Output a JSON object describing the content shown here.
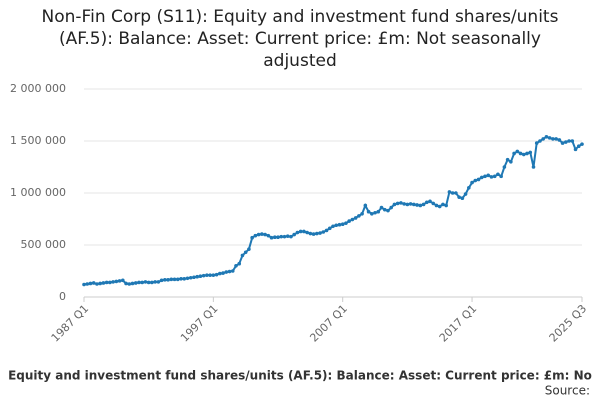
{
  "chart_data": {
    "type": "line",
    "title": "Non-Fin Corp (S11): Equity and investment fund shares/units (AF.5): Balance: Asset: Current price: £m: Not seasonally adjusted",
    "source": "Source:",
    "categories": [
      "1987 Q1",
      null,
      null,
      null,
      null,
      null,
      null,
      null,
      null,
      null,
      null,
      null,
      null,
      null,
      null,
      null,
      null,
      null,
      null,
      null,
      null,
      null,
      null,
      null,
      null,
      null,
      null,
      null,
      null,
      null,
      null,
      null,
      null,
      null,
      null,
      null,
      null,
      null,
      null,
      null,
      "1997 Q1",
      null,
      null,
      null,
      null,
      null,
      null,
      null,
      null,
      null,
      null,
      null,
      null,
      null,
      null,
      null,
      null,
      null,
      null,
      null,
      null,
      null,
      null,
      null,
      null,
      null,
      null,
      null,
      null,
      null,
      null,
      null,
      null,
      null,
      null,
      null,
      null,
      null,
      null,
      null,
      "2007 Q1",
      null,
      null,
      null,
      null,
      null,
      null,
      null,
      null,
      null,
      null,
      null,
      null,
      null,
      null,
      null,
      null,
      null,
      null,
      null,
      null,
      null,
      null,
      null,
      null,
      null,
      null,
      null,
      null,
      null,
      null,
      null,
      null,
      null,
      null,
      null,
      null,
      null,
      null,
      null,
      "2017 Q1",
      null,
      null,
      null,
      null,
      null,
      null,
      null,
      null,
      null,
      null,
      null,
      null,
      null,
      null,
      null,
      null,
      null,
      null,
      null,
      null,
      null,
      null,
      null,
      null,
      null,
      null,
      null,
      null,
      null,
      null,
      null,
      null,
      null,
      "2025 Q3"
    ],
    "series": [
      {
        "name": "Equity and investment fund shares/units (AF.5): Balance: Asset: Current price: £m: No",
        "color": "#1f78b4",
        "values": [
          120000,
          125000,
          130000,
          135000,
          125000,
          130000,
          135000,
          140000,
          140000,
          145000,
          150000,
          155000,
          160000,
          130000,
          125000,
          130000,
          135000,
          140000,
          140000,
          145000,
          140000,
          140000,
          145000,
          145000,
          160000,
          165000,
          165000,
          170000,
          170000,
          170000,
          175000,
          175000,
          180000,
          185000,
          190000,
          195000,
          200000,
          205000,
          210000,
          210000,
          210000,
          215000,
          225000,
          230000,
          240000,
          245000,
          250000,
          300000,
          320000,
          400000,
          430000,
          460000,
          570000,
          590000,
          600000,
          605000,
          600000,
          590000,
          570000,
          575000,
          575000,
          580000,
          580000,
          585000,
          580000,
          600000,
          620000,
          630000,
          630000,
          620000,
          610000,
          605000,
          610000,
          615000,
          625000,
          640000,
          660000,
          680000,
          690000,
          695000,
          700000,
          710000,
          730000,
          745000,
          760000,
          780000,
          800000,
          880000,
          820000,
          800000,
          810000,
          820000,
          860000,
          840000,
          830000,
          860000,
          890000,
          900000,
          905000,
          895000,
          890000,
          895000,
          890000,
          885000,
          880000,
          890000,
          910000,
          920000,
          900000,
          880000,
          870000,
          890000,
          880000,
          1010000,
          1000000,
          1000000,
          960000,
          950000,
          990000,
          1050000,
          1100000,
          1120000,
          1130000,
          1150000,
          1160000,
          1170000,
          1155000,
          1160000,
          1180000,
          1160000,
          1250000,
          1320000,
          1300000,
          1380000,
          1400000,
          1380000,
          1370000,
          1380000,
          1390000,
          1250000,
          1480000,
          1500000,
          1520000,
          1540000,
          1530000,
          1520000,
          1520000,
          1510000,
          1480000,
          1490000,
          1500000,
          1500000,
          1420000,
          1450000,
          1470000
        ]
      }
    ],
    "ylim": [
      0,
      2000000
    ],
    "yticks": [
      0,
      {
        "value": 500000,
        "label": "500 000"
      },
      {
        "value": 1000000,
        "label": "1 000 000"
      },
      {
        "value": 1500000,
        "label": "1 500 000"
      },
      {
        "value": 2000000,
        "label": "2 000 000"
      }
    ],
    "grid": true
  }
}
